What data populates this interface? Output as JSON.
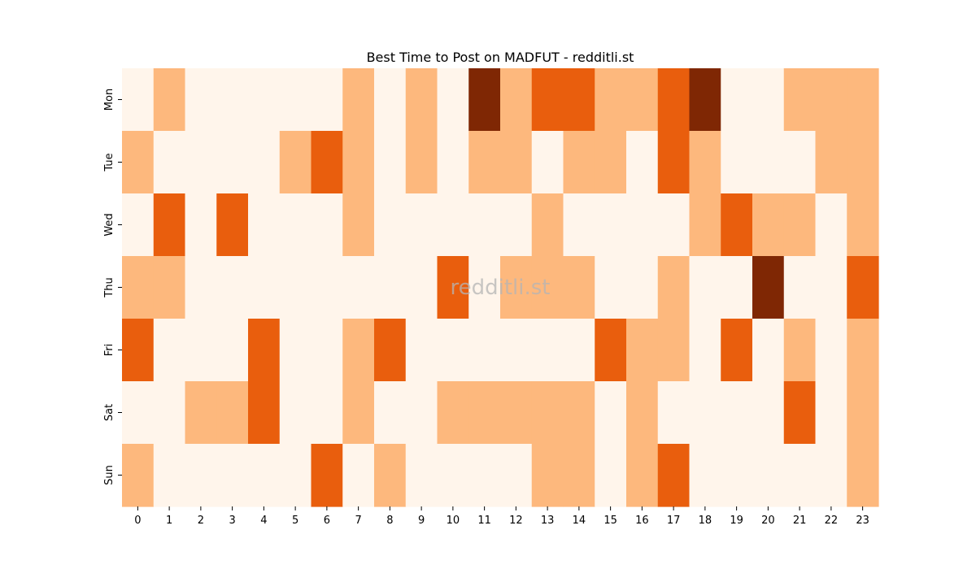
{
  "chart_data": {
    "type": "heatmap",
    "title": "Best Time to Post on MADFUT - redditli.st",
    "xlabel": "",
    "ylabel": "",
    "x": [
      0,
      1,
      2,
      3,
      4,
      5,
      6,
      7,
      8,
      9,
      10,
      11,
      12,
      13,
      14,
      15,
      16,
      17,
      18,
      19,
      20,
      21,
      22,
      23
    ],
    "y": [
      "Mon",
      "Tue",
      "Wed",
      "Thu",
      "Fri",
      "Sat",
      "Sun"
    ],
    "values": [
      [
        0,
        1,
        0,
        0,
        0,
        0,
        0,
        1,
        0,
        1,
        0,
        3,
        1,
        2,
        2,
        1,
        1,
        2,
        3,
        0,
        0,
        1,
        1,
        1
      ],
      [
        1,
        0,
        0,
        0,
        0,
        1,
        2,
        1,
        0,
        1,
        0,
        1,
        1,
        0,
        1,
        1,
        0,
        2,
        1,
        0,
        0,
        0,
        1,
        1
      ],
      [
        0,
        2,
        0,
        2,
        0,
        0,
        0,
        1,
        0,
        0,
        0,
        0,
        0,
        1,
        0,
        0,
        0,
        0,
        1,
        2,
        1,
        1,
        0,
        1
      ],
      [
        1,
        1,
        0,
        0,
        0,
        0,
        0,
        0,
        0,
        0,
        2,
        0,
        1,
        1,
        1,
        0,
        0,
        1,
        0,
        0,
        3,
        0,
        0,
        2
      ],
      [
        2,
        0,
        0,
        0,
        2,
        0,
        0,
        1,
        2,
        0,
        0,
        0,
        0,
        0,
        0,
        2,
        1,
        1,
        0,
        2,
        0,
        1,
        0,
        1
      ],
      [
        0,
        0,
        1,
        1,
        2,
        0,
        0,
        1,
        0,
        0,
        1,
        1,
        1,
        1,
        1,
        0,
        1,
        0,
        0,
        0,
        0,
        2,
        0,
        1
      ],
      [
        1,
        0,
        0,
        0,
        0,
        0,
        2,
        0,
        1,
        0,
        0,
        0,
        0,
        1,
        1,
        0,
        1,
        2,
        0,
        0,
        0,
        0,
        0,
        1
      ]
    ],
    "colormap": [
      "#fff5eb",
      "#fdb87d",
      "#e95e0d",
      "#7f2704"
    ],
    "colorbar": false,
    "grid": false,
    "watermark": "redditli.st"
  }
}
